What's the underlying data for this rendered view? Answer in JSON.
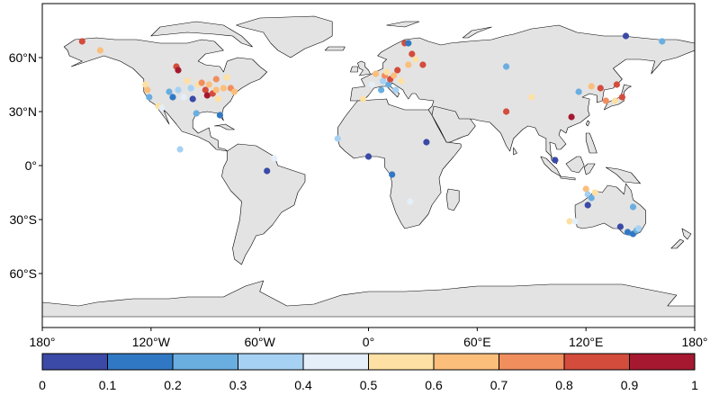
{
  "map": {
    "type": "scatter",
    "xlim": [
      -180,
      180
    ],
    "ylim": [
      -90,
      90
    ],
    "x_ticks": [
      {
        "value": -180,
        "label": "180°"
      },
      {
        "value": -120,
        "label": "120°W"
      },
      {
        "value": -60,
        "label": "60°W"
      },
      {
        "value": 0,
        "label": "0°"
      },
      {
        "value": 60,
        "label": "60°E"
      },
      {
        "value": 120,
        "label": "120°E"
      },
      {
        "value": 180,
        "label": "180°"
      }
    ],
    "y_ticks": [
      {
        "value": 60,
        "label": "60°N"
      },
      {
        "value": 30,
        "label": "30°N"
      },
      {
        "value": 0,
        "label": "0°"
      },
      {
        "value": -30,
        "label": "30°S"
      },
      {
        "value": -60,
        "label": "60°S"
      }
    ],
    "land_color": "#e3e3e3",
    "ocean_color": "#ffffff",
    "coast_color": "#000000",
    "grid": false
  },
  "colorbar": {
    "orientation": "horizontal",
    "position": "bottom",
    "min": 0,
    "max": 1,
    "tick_labels": [
      "0",
      "0.1",
      "0.2",
      "0.3",
      "0.4",
      "0.5",
      "0.6",
      "0.7",
      "0.8",
      "0.9",
      "1"
    ],
    "colors": [
      "#3b4aa6",
      "#3178c4",
      "#6aaee0",
      "#a6d1f3",
      "#e4effa",
      "#fde0a4",
      "#fbbe7b",
      "#f08e5e",
      "#d44c3c",
      "#a51830"
    ]
  },
  "chart_data": {
    "type": "scatter",
    "x_unit": "longitude (degrees)",
    "y_unit": "latitude (degrees)",
    "color_range": [
      0,
      1
    ],
    "points": [
      {
        "lon": -158,
        "lat": 69,
        "v": 0.85
      },
      {
        "lon": -148,
        "lat": 64,
        "v": 0.65
      },
      {
        "lon": -123,
        "lat": 45,
        "v": 0.55
      },
      {
        "lon": -122,
        "lat": 42,
        "v": 0.65
      },
      {
        "lon": -121,
        "lat": 38,
        "v": 0.25
      },
      {
        "lon": -116,
        "lat": 33,
        "v": 0.55
      },
      {
        "lon": -110,
        "lat": 41,
        "v": 0.25
      },
      {
        "lon": -108,
        "lat": 38,
        "v": 0.15
      },
      {
        "lon": -105,
        "lat": 42,
        "v": 0.35
      },
      {
        "lon": -106,
        "lat": 55,
        "v": 0.85
      },
      {
        "lon": -105,
        "lat": 53,
        "v": 0.95
      },
      {
        "lon": -100,
        "lat": 47,
        "v": 0.55
      },
      {
        "lon": -98,
        "lat": 43,
        "v": 0.35
      },
      {
        "lon": -97,
        "lat": 37,
        "v": 0.05
      },
      {
        "lon": -94,
        "lat": 45,
        "v": 0.55
      },
      {
        "lon": -92,
        "lat": 46,
        "v": 0.75
      },
      {
        "lon": -90,
        "lat": 42,
        "v": 0.85
      },
      {
        "lon": -89,
        "lat": 39,
        "v": 0.95
      },
      {
        "lon": -88,
        "lat": 45,
        "v": 0.65
      },
      {
        "lon": -86,
        "lat": 40,
        "v": 0.85
      },
      {
        "lon": -84,
        "lat": 48,
        "v": 0.75
      },
      {
        "lon": -84,
        "lat": 42,
        "v": 0.65
      },
      {
        "lon": -83,
        "lat": 37,
        "v": 0.55
      },
      {
        "lon": -80,
        "lat": 43,
        "v": 0.65
      },
      {
        "lon": -78,
        "lat": 49,
        "v": 0.55
      },
      {
        "lon": -76,
        "lat": 43,
        "v": 0.75
      },
      {
        "lon": -74,
        "lat": 41,
        "v": 0.65
      },
      {
        "lon": -95,
        "lat": 29,
        "v": 0.25
      },
      {
        "lon": -82,
        "lat": 28,
        "v": 0.15
      },
      {
        "lon": -102,
        "lat": 38,
        "v": 0.45
      },
      {
        "lon": -114,
        "lat": 32,
        "v": 0.45
      },
      {
        "lon": -104,
        "lat": 9,
        "v": 0.35
      },
      {
        "lon": -52,
        "lat": 4,
        "v": 0.45
      },
      {
        "lon": -56,
        "lat": -3,
        "v": 0.05
      },
      {
        "lon": -17,
        "lat": 15,
        "v": 0.35
      },
      {
        "lon": 0,
        "lat": 5,
        "v": 0.05
      },
      {
        "lon": 32,
        "lat": 13,
        "v": 0.05
      },
      {
        "lon": 13,
        "lat": -5,
        "v": 0.15
      },
      {
        "lon": 23,
        "lat": -20,
        "v": 0.45
      },
      {
        "lon": -3,
        "lat": 37,
        "v": 0.55
      },
      {
        "lon": 2,
        "lat": 45,
        "v": 0.45
      },
      {
        "lon": 4,
        "lat": 51,
        "v": 0.65
      },
      {
        "lon": 8,
        "lat": 47,
        "v": 0.35
      },
      {
        "lon": 9,
        "lat": 50,
        "v": 0.75
      },
      {
        "lon": 10,
        "lat": 52,
        "v": 0.55
      },
      {
        "lon": 11,
        "lat": 45,
        "v": 0.25
      },
      {
        "lon": 12,
        "lat": 48,
        "v": 0.85
      },
      {
        "lon": 14,
        "lat": 50,
        "v": 0.65
      },
      {
        "lon": 15,
        "lat": 42,
        "v": 0.35
      },
      {
        "lon": 16,
        "lat": 53,
        "v": 0.85
      },
      {
        "lon": 18,
        "lat": 47,
        "v": 0.55
      },
      {
        "lon": 7,
        "lat": 42,
        "v": 0.25
      },
      {
        "lon": 20,
        "lat": 68,
        "v": 0.85
      },
      {
        "lon": 22,
        "lat": 68,
        "v": 0.15
      },
      {
        "lon": 24,
        "lat": 62,
        "v": 0.85
      },
      {
        "lon": 30,
        "lat": 56,
        "v": 0.85
      },
      {
        "lon": 26,
        "lat": 59,
        "v": 0.55
      },
      {
        "lon": 22,
        "lat": 56,
        "v": 0.65
      },
      {
        "lon": 76,
        "lat": 55,
        "v": 0.25
      },
      {
        "lon": 76,
        "lat": 30,
        "v": 0.85
      },
      {
        "lon": 90,
        "lat": 38,
        "v": 0.55
      },
      {
        "lon": 103,
        "lat": 3,
        "v": 0.05
      },
      {
        "lon": 112,
        "lat": 27,
        "v": 0.95
      },
      {
        "lon": 116,
        "lat": 41,
        "v": 0.25
      },
      {
        "lon": 123,
        "lat": 44,
        "v": 0.65
      },
      {
        "lon": 128,
        "lat": 43,
        "v": 0.85
      },
      {
        "lon": 131,
        "lat": 36,
        "v": 0.75
      },
      {
        "lon": 136,
        "lat": 36,
        "v": 0.55
      },
      {
        "lon": 137,
        "lat": 45,
        "v": 0.85
      },
      {
        "lon": 140,
        "lat": 38,
        "v": 0.85
      },
      {
        "lon": 142,
        "lat": 72,
        "v": 0.05
      },
      {
        "lon": 162,
        "lat": 69,
        "v": 0.25
      },
      {
        "lon": 120,
        "lat": -13,
        "v": 0.65
      },
      {
        "lon": 121,
        "lat": -16,
        "v": 0.35
      },
      {
        "lon": 121,
        "lat": -22,
        "v": 0.05
      },
      {
        "lon": 125,
        "lat": -15,
        "v": 0.55
      },
      {
        "lon": 123,
        "lat": -18,
        "v": 0.25
      },
      {
        "lon": 111,
        "lat": -31,
        "v": 0.55
      },
      {
        "lon": 114,
        "lat": -31,
        "v": 0.45
      },
      {
        "lon": 139,
        "lat": -34,
        "v": 0.05
      },
      {
        "lon": 143,
        "lat": -37,
        "v": 0.15
      },
      {
        "lon": 146,
        "lat": -38,
        "v": 0.15
      },
      {
        "lon": 148,
        "lat": -36,
        "v": 0.25
      },
      {
        "lon": 149,
        "lat": -35,
        "v": 0.35
      },
      {
        "lon": 146,
        "lat": -23,
        "v": 0.25
      }
    ]
  }
}
